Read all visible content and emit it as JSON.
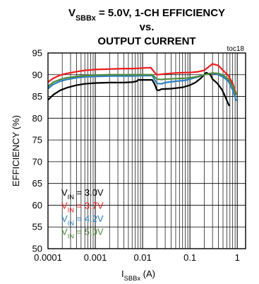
{
  "chart_data": {
    "type": "line",
    "title_lines": [
      {
        "parts": [
          {
            "t": "V"
          },
          {
            "t": "SBBx",
            "sub": true
          },
          {
            "t": " = 5.0V, 1-CH EFFICIENCY"
          }
        ]
      },
      {
        "parts": [
          {
            "t": "vs."
          }
        ]
      },
      {
        "parts": [
          {
            "t": "OUTPUT CURRENT"
          }
        ]
      }
    ],
    "annotation": "toc18",
    "ylabel": "EFFICIENCY (%)",
    "xlabel": {
      "parts": [
        {
          "t": "I"
        },
        {
          "t": "SBBx",
          "sub": true
        },
        {
          "t": " (A)"
        }
      ]
    },
    "x_scale": "log",
    "xlim": [
      0.0001,
      1.5
    ],
    "ylim": [
      50,
      95
    ],
    "x_ticks": [
      {
        "value": 0.0001,
        "label": "0.0001"
      },
      {
        "value": 0.001,
        "label": "0.001"
      },
      {
        "value": 0.01,
        "label": "0.01"
      },
      {
        "value": 0.1,
        "label": "0.1"
      },
      {
        "value": 1,
        "label": "1"
      }
    ],
    "y_ticks": [
      50,
      55,
      60,
      65,
      70,
      75,
      80,
      85,
      90,
      95
    ],
    "grid": true,
    "legend_position": "bottom-left",
    "series": [
      {
        "name_parts": [
          {
            "t": "V"
          },
          {
            "t": "IN",
            "sub": true
          },
          {
            "t": " = 3.0V"
          }
        ],
        "color": "#000000",
        "x": [
          0.0001,
          0.00013,
          0.00018,
          0.00025,
          0.0004,
          0.0006,
          0.001,
          0.002,
          0.004,
          0.006,
          0.0075,
          0.008,
          0.012,
          0.016,
          0.018,
          0.02,
          0.022,
          0.025,
          0.04,
          0.07,
          0.1,
          0.13,
          0.17,
          0.22,
          0.27,
          0.3,
          0.38,
          0.48,
          0.58,
          0.68
        ],
        "y": [
          84.2,
          85.4,
          86.4,
          87.0,
          87.6,
          87.9,
          88.1,
          88.2,
          88.2,
          88.3,
          88.5,
          88.8,
          88.8,
          88.8,
          87.8,
          86.5,
          86.4,
          86.7,
          86.8,
          87.1,
          87.6,
          88.2,
          89.2,
          90.5,
          90.0,
          89.0,
          88.0,
          86.5,
          84.5,
          82.8
        ]
      },
      {
        "name_parts": [
          {
            "t": "V"
          },
          {
            "t": "IN",
            "sub": true
          },
          {
            "t": " = 3.7V"
          }
        ],
        "color": "#ee1c1c",
        "x": [
          0.0001,
          0.00013,
          0.00018,
          0.00025,
          0.0004,
          0.0006,
          0.001,
          0.002,
          0.004,
          0.006,
          0.009,
          0.012,
          0.015,
          0.018,
          0.02,
          0.03,
          0.05,
          0.08,
          0.1,
          0.15,
          0.2,
          0.3,
          0.4,
          0.5,
          0.65,
          0.8,
          0.95
        ],
        "y": [
          88.3,
          89.2,
          89.9,
          90.3,
          90.7,
          91.0,
          91.2,
          91.3,
          91.4,
          91.4,
          91.5,
          91.6,
          91.6,
          90.5,
          90.0,
          90.2,
          90.4,
          90.5,
          90.5,
          90.7,
          91.0,
          92.5,
          92.1,
          91.0,
          89.8,
          88.0,
          85.5
        ]
      },
      {
        "name_parts": [
          {
            "t": "V"
          },
          {
            "t": "IN",
            "sub": true
          },
          {
            "t": " = 4.2V"
          }
        ],
        "color": "#2b7fc3",
        "x": [
          0.0001,
          0.00013,
          0.00018,
          0.00025,
          0.0004,
          0.0006,
          0.001,
          0.002,
          0.004,
          0.006,
          0.009,
          0.012,
          0.016,
          0.018,
          0.02,
          0.025,
          0.03,
          0.05,
          0.08,
          0.1,
          0.15,
          0.2,
          0.3,
          0.4,
          0.5,
          0.65,
          0.8,
          0.95
        ],
        "y": [
          86.8,
          87.8,
          88.5,
          88.9,
          89.3,
          89.5,
          89.6,
          89.7,
          89.7,
          89.7,
          89.8,
          89.8,
          89.8,
          88.8,
          88.0,
          87.9,
          88.2,
          88.5,
          88.7,
          89.0,
          89.5,
          90.0,
          90.4,
          90.0,
          89.5,
          88.5,
          86.5,
          84.0
        ]
      },
      {
        "name_parts": [
          {
            "t": "V"
          },
          {
            "t": "IN",
            "sub": true
          },
          {
            "t": " = 5.0V"
          }
        ],
        "color": "#4f8a3c",
        "x": [
          0.0001,
          0.00013,
          0.00018,
          0.00025,
          0.0004,
          0.0006,
          0.001,
          0.002,
          0.004,
          0.006,
          0.009,
          0.012,
          0.016,
          0.018,
          0.02,
          0.025,
          0.03,
          0.05,
          0.08,
          0.1,
          0.15,
          0.2,
          0.3,
          0.4,
          0.5,
          0.65,
          0.8,
          0.95
        ],
        "y": [
          87.3,
          88.3,
          88.9,
          89.3,
          89.6,
          89.8,
          89.9,
          90.0,
          90.0,
          90.0,
          90.0,
          90.0,
          90.0,
          89.5,
          89.0,
          88.9,
          89.0,
          89.1,
          89.2,
          89.3,
          89.6,
          90.0,
          90.4,
          90.3,
          89.9,
          89.0,
          87.4,
          85.3
        ]
      }
    ]
  }
}
